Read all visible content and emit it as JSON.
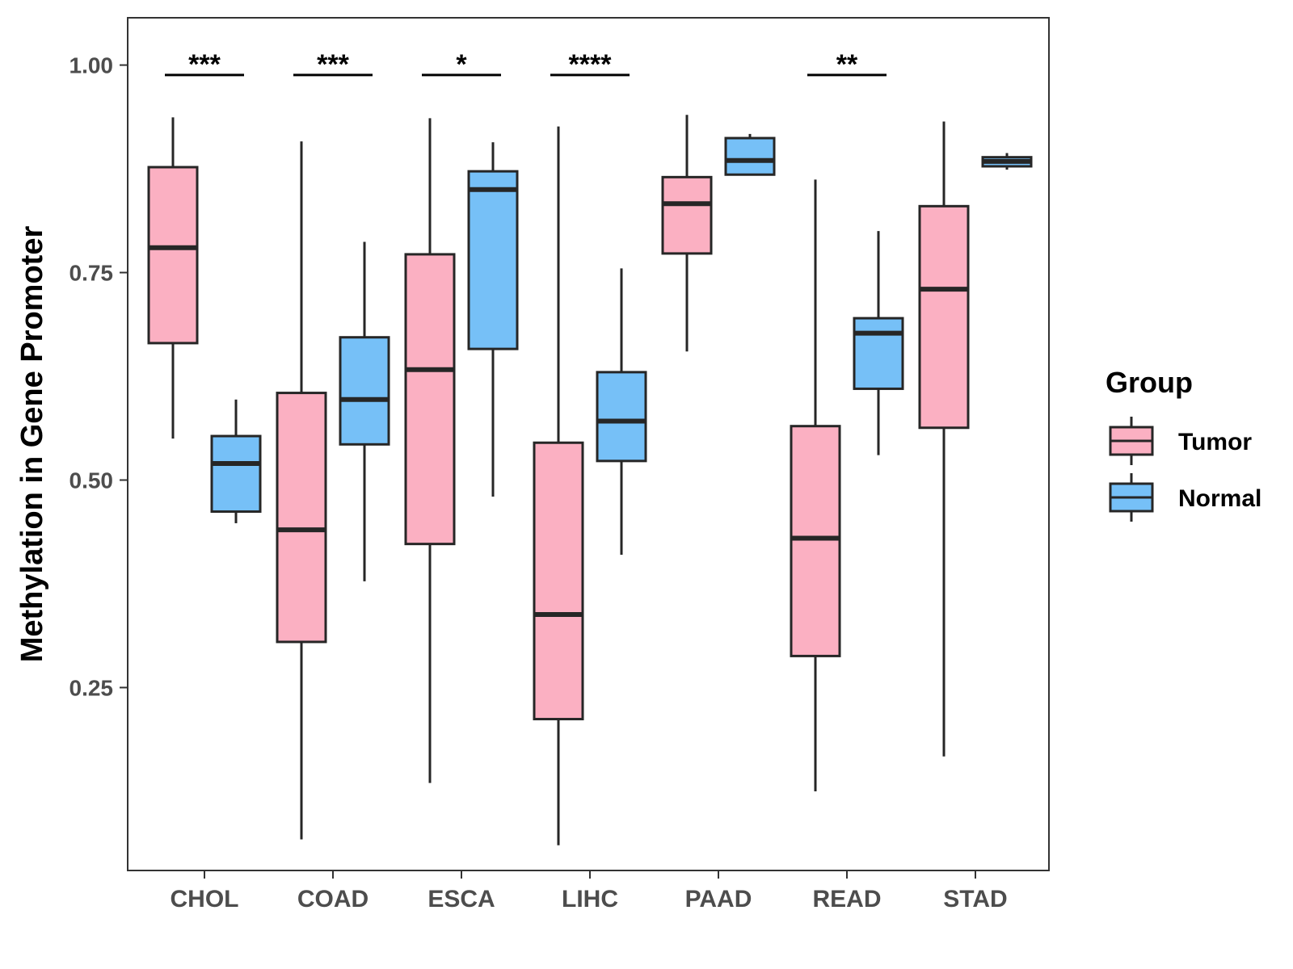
{
  "chart_data": {
    "type": "boxplot",
    "title": "",
    "xlabel": "",
    "ylabel": "Methylation in Gene Promoter",
    "ylim": [
      0.03,
      1.06
    ],
    "yticks": [
      0.25,
      0.5,
      0.75,
      1.0
    ],
    "ytick_labels": [
      "0.25",
      "0.50",
      "0.75",
      "1.00"
    ],
    "categories": [
      "CHOL",
      "COAD",
      "ESCA",
      "LIHC",
      "PAAD",
      "READ",
      "STAD"
    ],
    "series": [
      {
        "name": "Tumor",
        "color": "#FBB0C2",
        "boxes": [
          {
            "min": 0.55,
            "q1": 0.665,
            "median": 0.78,
            "q3": 0.877,
            "max": 0.937
          },
          {
            "min": 0.067,
            "q1": 0.305,
            "median": 0.44,
            "q3": 0.605,
            "max": 0.908
          },
          {
            "min": 0.135,
            "q1": 0.423,
            "median": 0.633,
            "q3": 0.772,
            "max": 0.936
          },
          {
            "min": 0.06,
            "q1": 0.212,
            "median": 0.338,
            "q3": 0.545,
            "max": 0.926
          },
          {
            "min": 0.655,
            "q1": 0.773,
            "median": 0.833,
            "q3": 0.865,
            "max": 0.94
          },
          {
            "min": 0.125,
            "q1": 0.288,
            "median": 0.43,
            "q3": 0.565,
            "max": 0.862
          },
          {
            "min": 0.167,
            "q1": 0.563,
            "median": 0.73,
            "q3": 0.83,
            "max": 0.932
          }
        ]
      },
      {
        "name": "Normal",
        "color": "#76C0F7",
        "boxes": [
          {
            "min": 0.448,
            "q1": 0.462,
            "median": 0.52,
            "q3": 0.553,
            "max": 0.597
          },
          {
            "min": 0.378,
            "q1": 0.543,
            "median": 0.597,
            "q3": 0.672,
            "max": 0.787
          },
          {
            "min": 0.48,
            "q1": 0.658,
            "median": 0.85,
            "q3": 0.872,
            "max": 0.907
          },
          {
            "min": 0.41,
            "q1": 0.523,
            "median": 0.571,
            "q3": 0.63,
            "max": 0.755
          },
          {
            "min": 0.868,
            "q1": 0.868,
            "median": 0.885,
            "q3": 0.912,
            "max": 0.917
          },
          {
            "min": 0.53,
            "q1": 0.61,
            "median": 0.677,
            "q3": 0.695,
            "max": 0.8
          },
          {
            "min": 0.874,
            "q1": 0.878,
            "median": 0.884,
            "q3": 0.889,
            "max": 0.894
          }
        ]
      }
    ],
    "annotations": [
      {
        "category": "CHOL",
        "label": "***",
        "y": 0.988
      },
      {
        "category": "COAD",
        "label": "***",
        "y": 0.988
      },
      {
        "category": "ESCA",
        "label": "*",
        "y": 0.988
      },
      {
        "category": "LIHC",
        "label": "****",
        "y": 0.988
      },
      {
        "category": "READ",
        "label": "**",
        "y": 0.988
      }
    ],
    "legend": {
      "title": "Group",
      "position": "right",
      "entries": [
        "Tumor",
        "Normal"
      ]
    },
    "grid": false
  }
}
